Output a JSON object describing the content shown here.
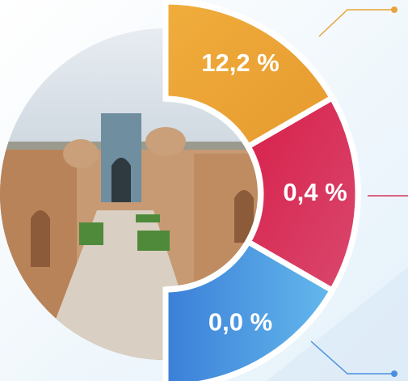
{
  "segments": [
    {
      "label": "12,2 %"
    },
    {
      "label": "0,4 %"
    },
    {
      "label": "0,0 %"
    }
  ]
}
